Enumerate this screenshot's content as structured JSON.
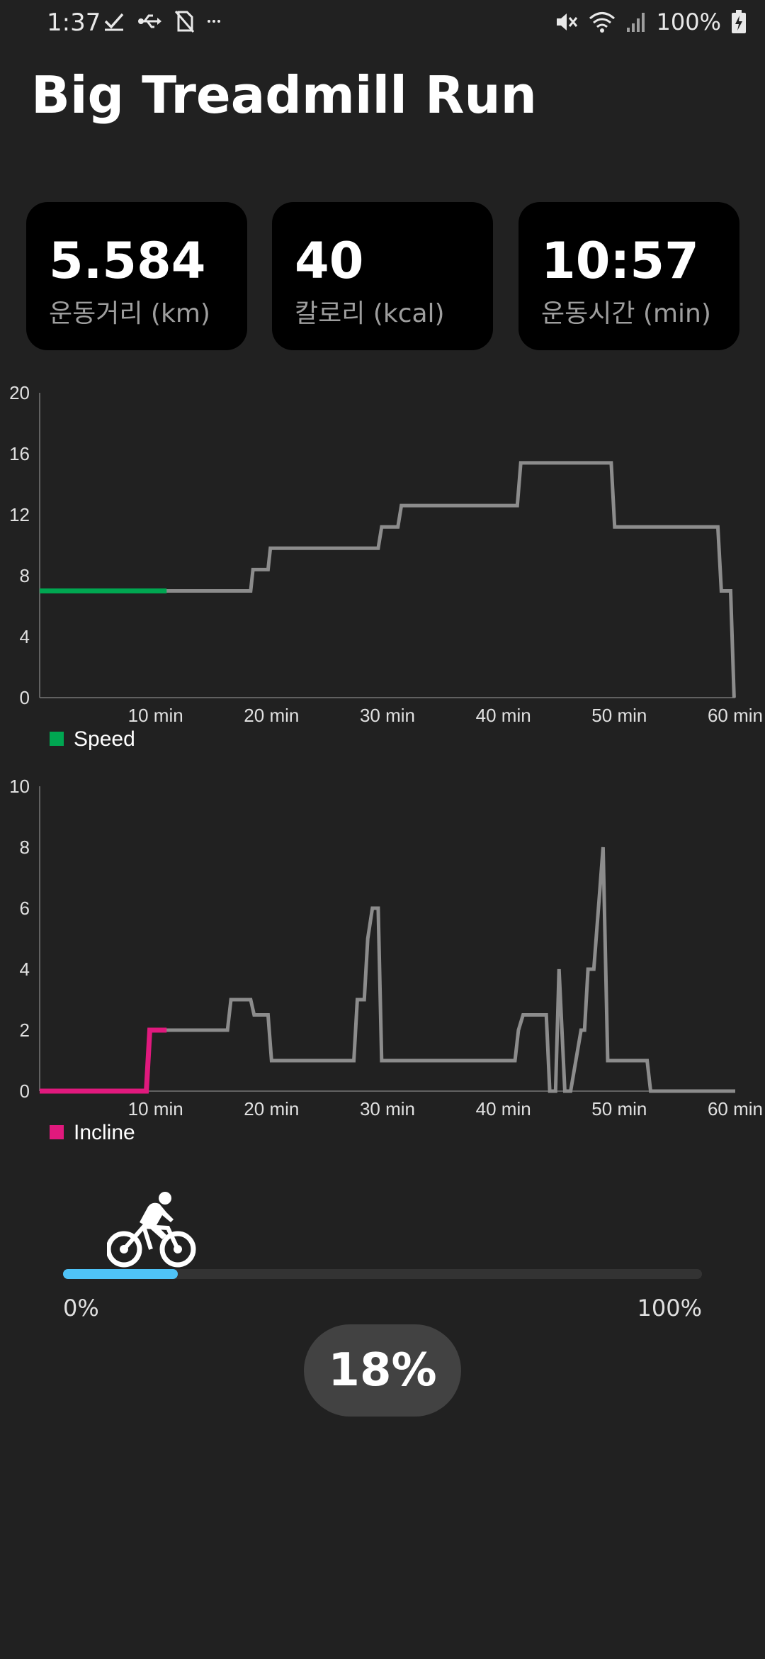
{
  "status_bar": {
    "time": "1:37",
    "battery": "100%",
    "left_icons": [
      "check-icon",
      "usb-icon",
      "no-sim-icon",
      "more-dots-icon"
    ],
    "right_icons": [
      "mute-icon",
      "wifi-icon",
      "signal-icon",
      "battery-charging-icon"
    ]
  },
  "title": "Big Treadmill Run",
  "stats": [
    {
      "value": "5.584",
      "label": "운동거리 (km)"
    },
    {
      "value": "40",
      "label": "칼로리 (kcal)"
    },
    {
      "value": "10:57",
      "label": "운동시간 (min)"
    }
  ],
  "colors": {
    "background": "#212121",
    "card": "#000000",
    "speed": "#00a651",
    "incline": "#e0197d",
    "plan_line": "#8c8c8c",
    "progress": "#4fc3f7"
  },
  "chart_data": [
    {
      "type": "line",
      "legend": "Speed",
      "legend_position": "bottom-left",
      "xlim": [
        0,
        60
      ],
      "ylim": [
        0,
        20
      ],
      "yticks": [
        "0",
        "4",
        "8",
        "12",
        "16",
        "20"
      ],
      "xticks": [
        "10 min",
        "20 min",
        "30 min",
        "40 min",
        "50 min",
        "60 min"
      ],
      "xtick_values": [
        10,
        20,
        30,
        40,
        50,
        60
      ],
      "grid": false,
      "series": [
        {
          "role": "plan",
          "x": [
            0,
            18.2,
            18.4,
            19.7,
            19.9,
            29.2,
            29.5,
            30.9,
            31.2,
            41.2,
            41.5,
            49.3,
            49.6,
            58.5,
            58.8,
            59.6,
            59.9
          ],
          "y": [
            7,
            7,
            8.4,
            8.4,
            9.8,
            9.8,
            11.2,
            11.2,
            12.6,
            12.6,
            15.4,
            15.4,
            11.2,
            11.2,
            7,
            7,
            0
          ]
        },
        {
          "role": "progress",
          "name": "Speed",
          "x": [
            0,
            10.95
          ],
          "y": [
            7,
            7
          ]
        }
      ]
    },
    {
      "type": "line",
      "legend": "Incline",
      "legend_position": "bottom-left",
      "xlim": [
        0,
        60
      ],
      "ylim": [
        0,
        10
      ],
      "yticks": [
        "0",
        "2",
        "4",
        "6",
        "8",
        "10"
      ],
      "xticks": [
        "10 min",
        "20 min",
        "30 min",
        "40 min",
        "50 min",
        "60 min"
      ],
      "xtick_values": [
        10,
        20,
        30,
        40,
        50,
        60
      ],
      "grid": false,
      "series": [
        {
          "role": "plan",
          "x": [
            0,
            9.2,
            9.5,
            10.2,
            16.2,
            16.5,
            18.2,
            18.5,
            19.7,
            20.0,
            27.1,
            27.4,
            28.0,
            28.3,
            28.7,
            29.2,
            29.5,
            29.9,
            41.0,
            41.3,
            41.7,
            42.2,
            43.7,
            44.0,
            44.5,
            44.8,
            45.3,
            45.8,
            46.7,
            47.0,
            47.3,
            47.8,
            48.2,
            48.6,
            49.0,
            52.4,
            52.7,
            60
          ],
          "y": [
            0,
            0,
            2,
            2,
            2,
            3,
            3,
            2.5,
            2.5,
            1,
            1,
            3,
            3,
            5,
            6,
            6,
            1,
            1,
            1,
            2,
            2.5,
            2.5,
            2.5,
            0,
            0,
            4,
            0,
            0,
            2,
            2,
            4,
            4,
            6,
            8,
            1,
            1,
            0,
            0
          ]
        },
        {
          "role": "progress",
          "name": "Incline",
          "x": [
            0,
            9.2,
            9.5,
            10.95
          ],
          "y": [
            0,
            0,
            2,
            2
          ]
        }
      ]
    }
  ],
  "progress": {
    "fraction": 0.18,
    "min_label": "0%",
    "max_label": "100%",
    "percent_label": "18%",
    "icon": "bicycle-rider-icon"
  }
}
